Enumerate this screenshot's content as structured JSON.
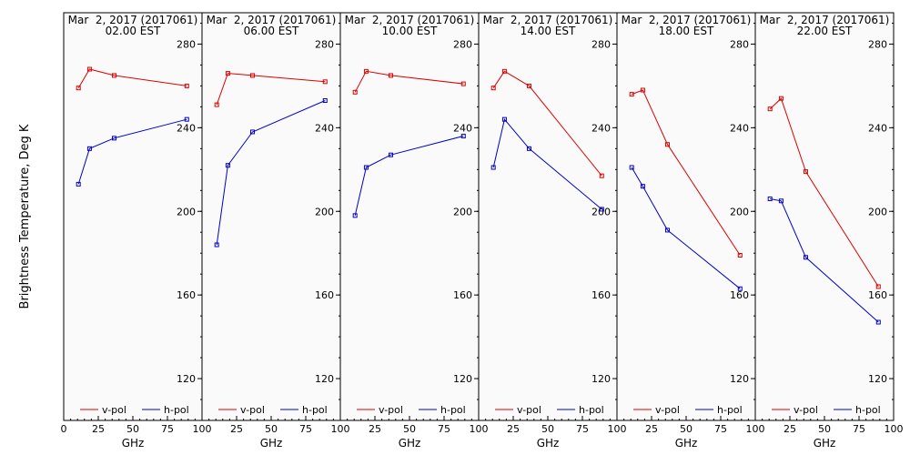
{
  "figure": {
    "ylabel": "Brightness Temperature, Deg K",
    "xlabel": "GHz"
  },
  "chart_data": [
    {
      "type": "line",
      "title": "Mar  2, 2017 (2017061)",
      "subtitle": "02.00 EST",
      "xlabel": "GHz",
      "ylabel": "Brightness Temperature, Deg K",
      "xlim": [
        0,
        100
      ],
      "ylim": [
        100,
        295
      ],
      "xticks": [
        0,
        25,
        50,
        75,
        100
      ],
      "yticks": [
        120,
        160,
        200,
        240,
        280
      ],
      "x": [
        10.65,
        18.7,
        36.5,
        89
      ],
      "series": [
        {
          "name": "v-pol",
          "color": "#dd0000",
          "values": [
            259,
            268,
            265,
            260
          ]
        },
        {
          "name": "h-pol",
          "color": "#0000cc",
          "values": [
            213,
            230,
            235,
            244
          ]
        }
      ],
      "legend": "bottom"
    },
    {
      "type": "line",
      "title": "Mar  2, 2017 (2017061)",
      "subtitle": "06.00 EST",
      "xlabel": "GHz",
      "ylabel": "Brightness Temperature, Deg K",
      "xlim": [
        0,
        100
      ],
      "ylim": [
        100,
        295
      ],
      "xticks": [
        0,
        25,
        50,
        75,
        100
      ],
      "yticks": [
        120,
        160,
        200,
        240,
        280
      ],
      "x": [
        10.65,
        18.7,
        36.5,
        89
      ],
      "series": [
        {
          "name": "v-pol",
          "color": "#dd0000",
          "values": [
            251,
            266,
            265,
            262
          ]
        },
        {
          "name": "h-pol",
          "color": "#0000cc",
          "values": [
            184,
            222,
            238,
            253
          ]
        }
      ],
      "legend": "bottom"
    },
    {
      "type": "line",
      "title": "Mar  2, 2017 (2017061)",
      "subtitle": "10.00 EST",
      "xlabel": "GHz",
      "ylabel": "Brightness Temperature, Deg K",
      "xlim": [
        0,
        100
      ],
      "ylim": [
        100,
        295
      ],
      "xticks": [
        0,
        25,
        50,
        75,
        100
      ],
      "yticks": [
        120,
        160,
        200,
        240,
        280
      ],
      "x": [
        10.65,
        18.7,
        36.5,
        89
      ],
      "series": [
        {
          "name": "v-pol",
          "color": "#dd0000",
          "values": [
            257,
            267,
            265,
            261
          ]
        },
        {
          "name": "h-pol",
          "color": "#0000cc",
          "values": [
            198,
            221,
            227,
            236
          ]
        }
      ],
      "legend": "bottom"
    },
    {
      "type": "line",
      "title": "Mar  2, 2017 (2017061)",
      "subtitle": "14.00 EST",
      "xlabel": "GHz",
      "ylabel": "Brightness Temperature, Deg K",
      "xlim": [
        0,
        100
      ],
      "ylim": [
        100,
        295
      ],
      "xticks": [
        0,
        25,
        50,
        75,
        100
      ],
      "yticks": [
        120,
        160,
        200,
        240,
        280
      ],
      "x": [
        10.65,
        18.7,
        36.5,
        89
      ],
      "series": [
        {
          "name": "v-pol",
          "color": "#dd0000",
          "values": [
            259,
            267,
            260,
            217
          ]
        },
        {
          "name": "h-pol",
          "color": "#0000cc",
          "values": [
            221,
            244,
            230,
            201
          ]
        }
      ],
      "legend": "bottom"
    },
    {
      "type": "line",
      "title": "Mar  2, 2017 (2017061)",
      "subtitle": "18.00 EST",
      "xlabel": "GHz",
      "ylabel": "Brightness Temperature, Deg K",
      "xlim": [
        0,
        100
      ],
      "ylim": [
        100,
        295
      ],
      "xticks": [
        0,
        25,
        50,
        75,
        100
      ],
      "yticks": [
        120,
        160,
        200,
        240,
        280
      ],
      "x": [
        10.65,
        18.7,
        36.5,
        89
      ],
      "series": [
        {
          "name": "v-pol",
          "color": "#dd0000",
          "values": [
            256,
            258,
            232,
            179
          ]
        },
        {
          "name": "h-pol",
          "color": "#0000cc",
          "values": [
            221,
            212,
            191,
            163
          ]
        }
      ],
      "legend": "bottom"
    },
    {
      "type": "line",
      "title": "Mar  2, 2017 (2017061)",
      "subtitle": "22.00 EST",
      "xlabel": "GHz",
      "ylabel": "Brightness Temperature, Deg K",
      "xlim": [
        0,
        100
      ],
      "ylim": [
        100,
        295
      ],
      "xticks": [
        0,
        25,
        50,
        75,
        100
      ],
      "yticks": [
        120,
        160,
        200,
        240,
        280
      ],
      "x": [
        10.65,
        18.7,
        36.5,
        89
      ],
      "series": [
        {
          "name": "v-pol",
          "color": "#dd0000",
          "values": [
            249,
            254,
            219,
            164
          ]
        },
        {
          "name": "h-pol",
          "color": "#0000cc",
          "values": [
            206,
            205,
            178,
            147
          ]
        }
      ],
      "legend": "bottom"
    }
  ]
}
